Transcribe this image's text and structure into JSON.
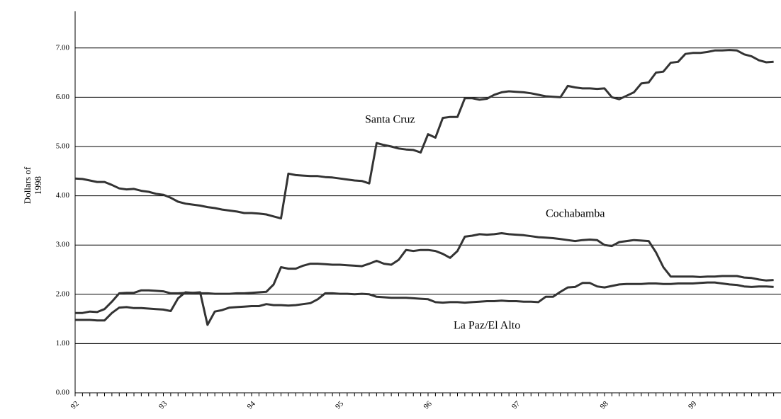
{
  "chart_data": {
    "type": "line",
    "ylabel": [
      "Dollars of",
      "1998"
    ],
    "categories": [
      "92",
      null,
      null,
      null,
      null,
      null,
      null,
      null,
      null,
      null,
      null,
      null,
      "93",
      null,
      null,
      null,
      null,
      null,
      null,
      null,
      null,
      null,
      null,
      null,
      "94",
      null,
      null,
      null,
      null,
      null,
      null,
      null,
      null,
      null,
      null,
      null,
      "95",
      null,
      null,
      null,
      null,
      null,
      null,
      null,
      null,
      null,
      null,
      null,
      "96",
      null,
      null,
      null,
      null,
      null,
      null,
      null,
      null,
      null,
      null,
      null,
      "97",
      null,
      null,
      null,
      null,
      null,
      null,
      null,
      null,
      null,
      null,
      null,
      "98",
      null,
      null,
      null,
      null,
      null,
      null,
      null,
      null,
      null,
      null,
      null,
      "99",
      null,
      null,
      null,
      null,
      null,
      null,
      null,
      null,
      null,
      null,
      null
    ],
    "series": [
      {
        "name": "Santa Cruz",
        "color": "#333333",
        "values": [
          4.35,
          4.34,
          4.31,
          4.28,
          4.28,
          4.22,
          4.15,
          4.13,
          4.14,
          4.1,
          4.08,
          4.04,
          4.02,
          3.96,
          3.88,
          3.84,
          3.82,
          3.8,
          3.77,
          3.75,
          3.72,
          3.7,
          3.68,
          3.65,
          3.65,
          3.64,
          3.62,
          3.58,
          3.54,
          4.45,
          4.42,
          4.41,
          4.4,
          4.4,
          4.38,
          4.37,
          4.35,
          4.33,
          4.31,
          4.3,
          4.25,
          5.07,
          5.03,
          5.0,
          4.96,
          4.94,
          4.93,
          4.88,
          5.25,
          5.18,
          5.58,
          5.6,
          5.6,
          5.98,
          5.98,
          5.95,
          5.97,
          6.05,
          6.1,
          6.12,
          6.11,
          6.1,
          6.08,
          6.05,
          6.02,
          6.01,
          6.0,
          6.23,
          6.2,
          6.18,
          6.18,
          6.17,
          6.18,
          6.0,
          5.96,
          6.03,
          6.1,
          6.28,
          6.3,
          6.5,
          6.52,
          6.7,
          6.72,
          6.88,
          6.9,
          6.9,
          6.92,
          6.95,
          6.95,
          6.96,
          6.95,
          6.87,
          6.83,
          6.75,
          6.71,
          6.72
        ]
      },
      {
        "name": "Cochabamba",
        "color": "#333333",
        "values": [
          1.62,
          1.62,
          1.65,
          1.64,
          1.7,
          1.85,
          2.02,
          2.03,
          2.03,
          2.08,
          2.08,
          2.07,
          2.06,
          2.02,
          2.02,
          2.03,
          2.03,
          2.02,
          2.02,
          2.01,
          2.01,
          2.01,
          2.02,
          2.02,
          2.03,
          2.04,
          2.05,
          2.2,
          2.55,
          2.52,
          2.52,
          2.58,
          2.62,
          2.62,
          2.61,
          2.6,
          2.6,
          2.59,
          2.58,
          2.57,
          2.62,
          2.68,
          2.62,
          2.6,
          2.7,
          2.9,
          2.88,
          2.9,
          2.9,
          2.88,
          2.82,
          2.74,
          2.88,
          3.17,
          3.19,
          3.22,
          3.21,
          3.22,
          3.24,
          3.22,
          3.21,
          3.2,
          3.18,
          3.16,
          3.15,
          3.14,
          3.12,
          3.1,
          3.08,
          3.1,
          3.11,
          3.1,
          3.0,
          2.98,
          3.06,
          3.08,
          3.1,
          3.09,
          3.08,
          2.85,
          2.55,
          2.36,
          2.36,
          2.36,
          2.36,
          2.35,
          2.36,
          2.36,
          2.37,
          2.37,
          2.37,
          2.34,
          2.33,
          2.3,
          2.28,
          2.29
        ]
      },
      {
        "name": "La Paz/El Alto",
        "color": "#333333",
        "values": [
          1.48,
          1.48,
          1.48,
          1.47,
          1.47,
          1.62,
          1.73,
          1.74,
          1.72,
          1.72,
          1.71,
          1.7,
          1.69,
          1.66,
          1.92,
          2.04,
          2.03,
          2.04,
          1.38,
          1.65,
          1.68,
          1.73,
          1.74,
          1.75,
          1.76,
          1.76,
          1.8,
          1.78,
          1.78,
          1.77,
          1.78,
          1.8,
          1.82,
          1.9,
          2.02,
          2.02,
          2.01,
          2.01,
          2.0,
          2.01,
          2.0,
          1.95,
          1.94,
          1.93,
          1.93,
          1.93,
          1.92,
          1.91,
          1.9,
          1.84,
          1.83,
          1.84,
          1.84,
          1.83,
          1.84,
          1.85,
          1.86,
          1.86,
          1.87,
          1.86,
          1.86,
          1.85,
          1.85,
          1.84,
          1.95,
          1.95,
          2.05,
          2.14,
          2.15,
          2.23,
          2.23,
          2.16,
          2.14,
          2.17,
          2.2,
          2.21,
          2.21,
          2.21,
          2.22,
          2.22,
          2.21,
          2.21,
          2.22,
          2.22,
          2.22,
          2.23,
          2.24,
          2.24,
          2.22,
          2.2,
          2.19,
          2.16,
          2.15,
          2.16,
          2.16,
          2.15
        ]
      }
    ],
    "ylim": [
      0,
      7.7
    ],
    "yticks": [
      {
        "value": 0,
        "label": "0.00"
      },
      {
        "value": 1,
        "label": "1.00"
      },
      {
        "value": 2,
        "label": "2.00"
      },
      {
        "value": 3,
        "label": "3.00"
      },
      {
        "value": 4,
        "label": "4.00"
      },
      {
        "value": 5,
        "label": "5.00"
      },
      {
        "value": 6,
        "label": "6.00"
      },
      {
        "value": 7,
        "label": "7.00"
      }
    ],
    "grid": true
  }
}
